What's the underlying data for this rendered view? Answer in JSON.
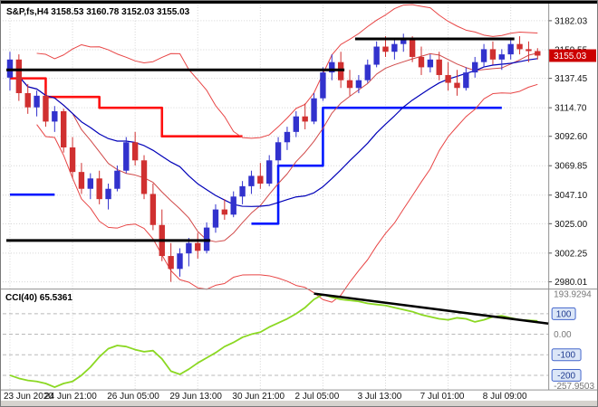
{
  "window": {
    "title_overlay": "S&P,fs,H4 3158.53 3160.78 3152.03 3155.03",
    "indicator_overlay": "CCI(40) 65.5361"
  },
  "price_axis": {
    "labels": [
      "3182.03",
      "3159.55",
      "3137.45",
      "3114.70",
      "3092.60",
      "3069.85",
      "3047.10",
      "3025.00",
      "3002.25",
      "2980.01"
    ],
    "current_price_label": "3155.03"
  },
  "time_axis": {
    "labels": [
      "23 Jun 2020",
      "24 Jun 21:00",
      "26 Jun 05:00",
      "29 Jun 13:00",
      "30 Jun 21:00",
      "2 Jul 05:00",
      "3 Jul 13:00",
      "7 Jul 01:00",
      "8 Jul 09:00"
    ],
    "tick_indices": [
      0,
      7,
      14,
      21,
      28,
      35,
      42,
      49,
      56
    ]
  },
  "cci_axis": {
    "max_label": "193.9294",
    "zero_label": "0.00",
    "min_label": "-257.9503",
    "level_labels": [
      "100",
      "-100",
      "-200"
    ],
    "levels": [
      100,
      -100,
      -200
    ]
  },
  "colors": {
    "bull": "#3232cd",
    "bear": "#d03030",
    "band": "#e84545",
    "band_mid": "#0000b8",
    "ma_fast": "#d04848",
    "support_step": "#0018ff",
    "resistance_step": "#ff1010",
    "trendline": "#000000",
    "cci_line": "#8bd822",
    "badge": "#cc0000",
    "grid": "#d4d4d4",
    "level_line": "#b8b8b8",
    "chip_fill": "#dbe6f7",
    "chip_border": "#4466cc",
    "chip_text": "#1e3a8f",
    "axis_text": "#111111",
    "muted_text": "#777777"
  },
  "chart_data": {
    "type": "candlestick",
    "symbol": "S&P,fs",
    "timeframe": "H4",
    "title": "S&P,fs,H4",
    "price_range": [
      2980.01,
      3182.03
    ],
    "ohlc_current": {
      "open": 3158.53,
      "high": 3160.78,
      "low": 3152.03,
      "close": 3155.03
    },
    "candles": [
      [
        3138,
        3158,
        3128,
        3152
      ],
      [
        3152,
        3156,
        3120,
        3126
      ],
      [
        3126,
        3133,
        3110,
        3115
      ],
      [
        3115,
        3128,
        3108,
        3124
      ],
      [
        3124,
        3130,
        3100,
        3104
      ],
      [
        3104,
        3116,
        3096,
        3112
      ],
      [
        3112,
        3114,
        3080,
        3084
      ],
      [
        3084,
        3092,
        3060,
        3065
      ],
      [
        3065,
        3072,
        3048,
        3052
      ],
      [
        3052,
        3064,
        3044,
        3060
      ],
      [
        3060,
        3066,
        3040,
        3044
      ],
      [
        3044,
        3056,
        3036,
        3052
      ],
      [
        3052,
        3070,
        3050,
        3066
      ],
      [
        3066,
        3092,
        3064,
        3088
      ],
      [
        3088,
        3096,
        3070,
        3074
      ],
      [
        3074,
        3078,
        3044,
        3048
      ],
      [
        3048,
        3056,
        3020,
        3024
      ],
      [
        3024,
        3036,
        2996,
        3000
      ],
      [
        3000,
        3010,
        2980,
        2990
      ],
      [
        2990,
        3006,
        2984,
        3002
      ],
      [
        3002,
        3014,
        2992,
        3010
      ],
      [
        3010,
        3018,
        2998,
        3004
      ],
      [
        3004,
        3026,
        3002,
        3022
      ],
      [
        3022,
        3040,
        3018,
        3036
      ],
      [
        3036,
        3044,
        3028,
        3032
      ],
      [
        3032,
        3050,
        3030,
        3046
      ],
      [
        3046,
        3058,
        3040,
        3054
      ],
      [
        3054,
        3066,
        3048,
        3062
      ],
      [
        3062,
        3072,
        3052,
        3056
      ],
      [
        3056,
        3078,
        3054,
        3074
      ],
      [
        3074,
        3092,
        3070,
        3088
      ],
      [
        3088,
        3100,
        3082,
        3096
      ],
      [
        3096,
        3112,
        3092,
        3108
      ],
      [
        3108,
        3118,
        3098,
        3104
      ],
      [
        3104,
        3126,
        3102,
        3122
      ],
      [
        3122,
        3146,
        3120,
        3142
      ],
      [
        3142,
        3156,
        3136,
        3150
      ],
      [
        3150,
        3158,
        3130,
        3136
      ],
      [
        3136,
        3144,
        3124,
        3130
      ],
      [
        3130,
        3140,
        3126,
        3136
      ],
      [
        3136,
        3152,
        3134,
        3148
      ],
      [
        3148,
        3166,
        3146,
        3162
      ],
      [
        3162,
        3170,
        3154,
        3158
      ],
      [
        3158,
        3168,
        3152,
        3164
      ],
      [
        3164,
        3172,
        3158,
        3168
      ],
      [
        3168,
        3170,
        3150,
        3154
      ],
      [
        3154,
        3162,
        3140,
        3146
      ],
      [
        3146,
        3156,
        3142,
        3152
      ],
      [
        3152,
        3158,
        3136,
        3140
      ],
      [
        3140,
        3150,
        3128,
        3134
      ],
      [
        3134,
        3144,
        3124,
        3130
      ],
      [
        3130,
        3146,
        3128,
        3142
      ],
      [
        3142,
        3154,
        3138,
        3150
      ],
      [
        3150,
        3164,
        3146,
        3160
      ],
      [
        3160,
        3166,
        3148,
        3152
      ],
      [
        3152,
        3160,
        3144,
        3156
      ],
      [
        3156,
        3168,
        3152,
        3164
      ],
      [
        3164,
        3170,
        3156,
        3160
      ],
      [
        3160,
        3166,
        3150,
        3158.53
      ],
      [
        3158.53,
        3160.78,
        3152.03,
        3155.03
      ]
    ],
    "overlays": {
      "bollinger": {
        "period": 20,
        "deviation": 2
      },
      "ma_fast": {
        "period": 8
      },
      "support_steps_blue": [
        [
          {
            "price": 3047.5,
            "from": 0,
            "to": 5
          }
        ],
        [
          {
            "price": 3025,
            "from": 27,
            "to": 30
          },
          {
            "price": 3069.85,
            "from": 30,
            "to": 35
          },
          {
            "price": 3114.7,
            "from": 35,
            "to": 55
          }
        ]
      ],
      "resistance_steps_red": [
        [
          {
            "price": 3137.45,
            "from": 0,
            "to": 4
          },
          {
            "price": 3123,
            "from": 4,
            "to": 10
          },
          {
            "price": 3114.7,
            "from": 10,
            "to": 17
          },
          {
            "price": 3092.6,
            "from": 17,
            "to": 26
          }
        ]
      ],
      "trendlines_black": [
        {
          "price": 3168,
          "from": 39,
          "to": 56
        },
        {
          "price": 3144,
          "from": 0,
          "to": 37
        },
        {
          "price": 3012,
          "from": 0,
          "to": 22
        }
      ]
    },
    "indicator": {
      "name": "CCI",
      "period": 40,
      "current": 65.5361,
      "range": [
        -257.9503,
        193.9294
      ],
      "levels": [
        100,
        0,
        -100,
        -200
      ],
      "values": [
        -200,
        -215,
        -225,
        -230,
        -240,
        -257.9503,
        -240,
        -230,
        -200,
        -160,
        -110,
        -70,
        -55,
        -60,
        -75,
        -85,
        -80,
        -120,
        -180,
        -195,
        -170,
        -140,
        -115,
        -90,
        -60,
        -40,
        -15,
        0,
        10,
        35,
        55,
        75,
        100,
        130,
        170,
        193.9294,
        180,
        170,
        165,
        160,
        150,
        145,
        140,
        130,
        120,
        110,
        95,
        85,
        75,
        70,
        80,
        75,
        60,
        70,
        85,
        90,
        80,
        70,
        68,
        65.5361
      ],
      "trendline": {
        "from_index": 34,
        "from_value": 198,
        "to_index": 61,
        "to_value": 52
      }
    }
  }
}
